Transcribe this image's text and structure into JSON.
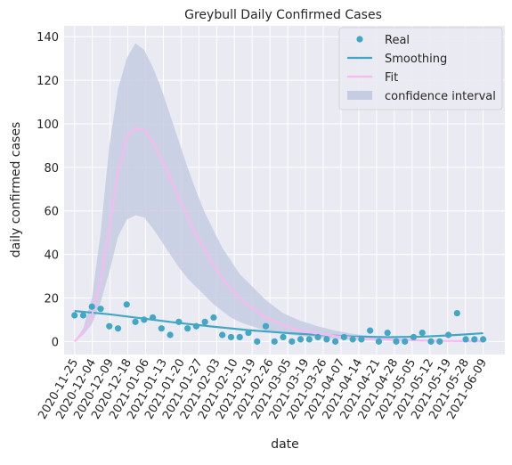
{
  "chart_data": {
    "type": "line",
    "title": "Greybull Daily Confirmed Cases",
    "xlabel": "date",
    "ylabel": "daily confirmed cases",
    "ylim": [
      -6,
      145
    ],
    "grid": true,
    "legend_position": "top-right",
    "y_ticks": [
      0,
      20,
      40,
      60,
      80,
      100,
      120,
      140
    ],
    "x_ticks": [
      "2020-11-25",
      "2020-12-04",
      "2020-12-09",
      "2020-12-18",
      "2021-01-06",
      "2021-01-13",
      "2021-01-20",
      "2021-01-27",
      "2021-02-03",
      "2021-02-10",
      "2021-02-19",
      "2021-02-26",
      "2021-03-05",
      "2021-03-19",
      "2021-03-26",
      "2021-04-07",
      "2021-04-14",
      "2021-04-21",
      "2021-04-28",
      "2021-05-05",
      "2021-05-12",
      "2021-05-19",
      "2021-05-28",
      "2021-06-09"
    ],
    "legend": [
      "Real",
      "Smoothing",
      "Fit",
      "confidence interval"
    ],
    "colors": {
      "real": "#41a7c4",
      "smoothing": "#41a7c4",
      "fit": "#f9b9f0",
      "confidence_interval": "#c6cce2",
      "plot_background": "#eaeaf2",
      "grid": "#ffffff"
    },
    "series": [
      {
        "name": "Real",
        "kind": "scatter",
        "points": [
          [
            0,
            12
          ],
          [
            1,
            12
          ],
          [
            2,
            16
          ],
          [
            3,
            15
          ],
          [
            4,
            7
          ],
          [
            5,
            6
          ],
          [
            6,
            17
          ],
          [
            7,
            9
          ],
          [
            8,
            10
          ],
          [
            9,
            11
          ],
          [
            10,
            6
          ],
          [
            11,
            3
          ],
          [
            12,
            9
          ],
          [
            13,
            6
          ],
          [
            14,
            7
          ],
          [
            15,
            9
          ],
          [
            16,
            11
          ],
          [
            17,
            3
          ],
          [
            18,
            2
          ],
          [
            19,
            2
          ],
          [
            20,
            4
          ],
          [
            21,
            0
          ],
          [
            22,
            7
          ],
          [
            23,
            0
          ],
          [
            24,
            2
          ],
          [
            25,
            0
          ],
          [
            26,
            1
          ],
          [
            27,
            1
          ],
          [
            28,
            2
          ],
          [
            29,
            1
          ],
          [
            30,
            0
          ],
          [
            31,
            2
          ],
          [
            32,
            1
          ],
          [
            33,
            1
          ],
          [
            34,
            5
          ],
          [
            35,
            0
          ],
          [
            36,
            4
          ],
          [
            37,
            0
          ],
          [
            38,
            0
          ],
          [
            39,
            2
          ],
          [
            40,
            4
          ],
          [
            41,
            0
          ],
          [
            42,
            0
          ],
          [
            43,
            3
          ],
          [
            44,
            13
          ],
          [
            45,
            1
          ],
          [
            46,
            1
          ],
          [
            47,
            1
          ]
        ]
      },
      {
        "name": "Smoothing",
        "kind": "line",
        "points": [
          [
            0,
            14
          ],
          [
            4,
            12.5
          ],
          [
            8,
            10.5
          ],
          [
            12,
            8.5
          ],
          [
            16,
            6.8
          ],
          [
            20,
            5.2
          ],
          [
            24,
            4
          ],
          [
            28,
            3
          ],
          [
            32,
            2.3
          ],
          [
            36,
            2
          ],
          [
            40,
            2.2
          ],
          [
            44,
            3
          ],
          [
            47,
            3.8
          ]
        ]
      },
      {
        "name": "Fit",
        "kind": "line",
        "points": [
          [
            0,
            0
          ],
          [
            1,
            4
          ],
          [
            2,
            12
          ],
          [
            3,
            28
          ],
          [
            4,
            52
          ],
          [
            5,
            78
          ],
          [
            6,
            94
          ],
          [
            7,
            98
          ],
          [
            8,
            97
          ],
          [
            9,
            92
          ],
          [
            10,
            84
          ],
          [
            11,
            75
          ],
          [
            12,
            66
          ],
          [
            13,
            57
          ],
          [
            14,
            49
          ],
          [
            15,
            42
          ],
          [
            16,
            35
          ],
          [
            17,
            29
          ],
          [
            18,
            24
          ],
          [
            19,
            20
          ],
          [
            20,
            16.5
          ],
          [
            22,
            11
          ],
          [
            24,
            7.5
          ],
          [
            26,
            5
          ],
          [
            28,
            3.5
          ],
          [
            30,
            2.5
          ],
          [
            32,
            1.8
          ],
          [
            34,
            1.2
          ],
          [
            36,
            0.8
          ],
          [
            40,
            0.4
          ],
          [
            44,
            0.2
          ],
          [
            47,
            0.1
          ]
        ]
      },
      {
        "name": "confidence interval",
        "kind": "band",
        "lower": [
          [
            0,
            0
          ],
          [
            1,
            3
          ],
          [
            2,
            8
          ],
          [
            3,
            18
          ],
          [
            4,
            32
          ],
          [
            5,
            48
          ],
          [
            6,
            56
          ],
          [
            7,
            58
          ],
          [
            8,
            57
          ],
          [
            9,
            52
          ],
          [
            10,
            46
          ],
          [
            11,
            40
          ],
          [
            12,
            34
          ],
          [
            13,
            29
          ],
          [
            14,
            25
          ],
          [
            15,
            21
          ],
          [
            16,
            17
          ],
          [
            17,
            14
          ],
          [
            18,
            11
          ],
          [
            19,
            9
          ],
          [
            20,
            7.5
          ],
          [
            22,
            5
          ],
          [
            24,
            3.5
          ],
          [
            26,
            2.5
          ],
          [
            28,
            1.7
          ],
          [
            30,
            1.2
          ],
          [
            32,
            0.8
          ],
          [
            34,
            0.5
          ],
          [
            36,
            0.3
          ],
          [
            40,
            0.1
          ],
          [
            44,
            0
          ],
          [
            47,
            0
          ]
        ],
        "upper": [
          [
            0,
            0
          ],
          [
            1,
            6
          ],
          [
            2,
            20
          ],
          [
            3,
            50
          ],
          [
            4,
            90
          ],
          [
            5,
            116
          ],
          [
            6,
            130
          ],
          [
            7,
            137
          ],
          [
            8,
            134
          ],
          [
            9,
            126
          ],
          [
            10,
            116
          ],
          [
            11,
            104
          ],
          [
            12,
            92
          ],
          [
            13,
            80
          ],
          [
            14,
            69
          ],
          [
            15,
            59
          ],
          [
            16,
            51
          ],
          [
            17,
            43
          ],
          [
            18,
            37
          ],
          [
            19,
            31
          ],
          [
            20,
            27
          ],
          [
            22,
            19
          ],
          [
            24,
            13
          ],
          [
            26,
            9.5
          ],
          [
            28,
            7
          ],
          [
            30,
            5
          ],
          [
            32,
            3.5
          ],
          [
            34,
            2.5
          ],
          [
            36,
            1.8
          ],
          [
            40,
            0.9
          ],
          [
            44,
            0.5
          ],
          [
            47,
            0.3
          ]
        ]
      }
    ]
  }
}
